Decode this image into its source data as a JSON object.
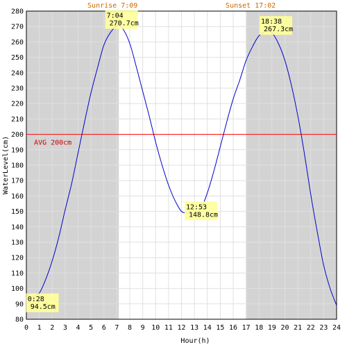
{
  "chart_data": {
    "type": "line",
    "title": "",
    "xlabel": "Hour(h)",
    "ylabel": "WaterLevel(cm)",
    "xlim": [
      0,
      24
    ],
    "ylim": [
      80,
      280
    ],
    "grid": true,
    "x_ticks": [
      0,
      1,
      2,
      3,
      4,
      5,
      6,
      7,
      8,
      9,
      10,
      11,
      12,
      13,
      14,
      15,
      16,
      17,
      18,
      19,
      20,
      21,
      22,
      23,
      24
    ],
    "y_ticks": [
      80,
      90,
      100,
      110,
      120,
      130,
      140,
      150,
      160,
      170,
      180,
      190,
      200,
      210,
      220,
      230,
      240,
      250,
      260,
      270,
      280
    ],
    "night_shading": [
      [
        0,
        7.15
      ],
      [
        17.03,
        24
      ]
    ],
    "sunrise_label": "Sunrise 7:09",
    "sunset_label": "Sunset 17:02",
    "sunrise_x": 7.15,
    "sunset_x": 17.03,
    "avg": {
      "value": 200,
      "label": "AVG 200cm"
    },
    "series": [
      {
        "color": "#0000cc",
        "x": [
          0,
          0.467,
          1,
          1.5,
          2,
          2.5,
          3,
          3.5,
          4,
          4.5,
          5,
          5.5,
          6,
          6.5,
          7.067,
          7.5,
          8,
          8.5,
          9,
          9.5,
          10,
          10.5,
          11,
          11.5,
          12,
          12.5,
          12.883,
          13.5,
          14,
          14.5,
          15,
          15.5,
          16,
          16.5,
          17,
          17.5,
          18,
          18.633,
          19,
          19.5,
          20,
          20.5,
          21,
          21.5,
          22,
          22.5,
          23,
          23.5,
          24
        ],
        "y": [
          96,
          94.5,
          97,
          106,
          118,
          133,
          151,
          168,
          188,
          208,
          227,
          243,
          258,
          266,
          270.7,
          268,
          259,
          244,
          228,
          212,
          195,
          180,
          167,
          157,
          150,
          148.9,
          148.8,
          152,
          162,
          176,
          192,
          208,
          223,
          235,
          248,
          257,
          264,
          267.3,
          266,
          259,
          248,
          232,
          212,
          188,
          161,
          137,
          115,
          100,
          89
        ]
      }
    ],
    "annotations": [
      {
        "time": "0:28",
        "value": "94.5cm",
        "x": 0.467,
        "y": 94.5
      },
      {
        "time": "7:04",
        "value": "270.7cm",
        "x": 7.067,
        "y": 270.7
      },
      {
        "time": "12:53",
        "value": "148.8cm",
        "x": 12.883,
        "y": 148.8
      },
      {
        "time": "18:38",
        "value": "267.3cm",
        "x": 18.633,
        "y": 267.3
      }
    ]
  }
}
